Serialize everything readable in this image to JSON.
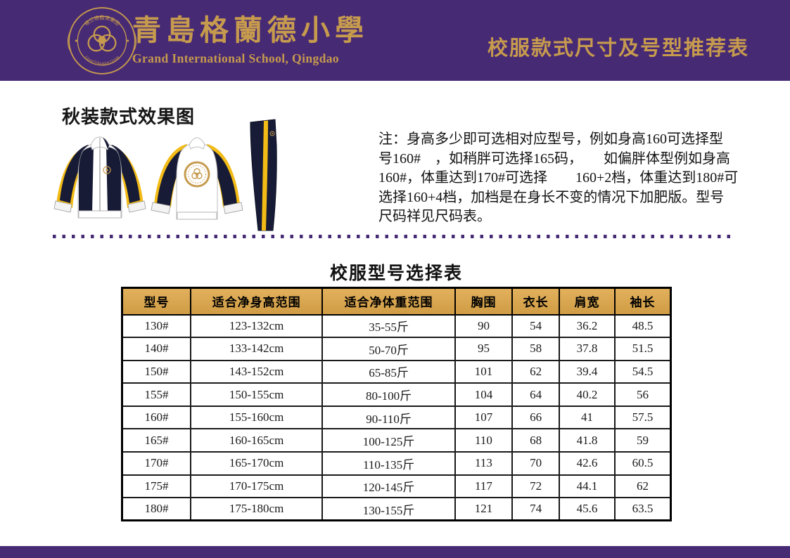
{
  "header": {
    "school_name_zh": "青島格蘭德小學",
    "school_name_en": "Grand International School, Qingdao",
    "page_title": "校服款式尺寸及号型推荐表",
    "logo": {
      "arc_top_text": "格兰德教育集团",
      "arc_bottom_text": "Grand Education Group"
    }
  },
  "autumn_section": {
    "title": "秋装款式效果图",
    "garments": [
      "jacket-front",
      "jacket-back",
      "pants"
    ],
    "note_lines": [
      "注：身高多少即可选相对应型号，例如身高160可选择型",
      "号160#　，如稍胖可选择165码，　　如偏胖体型例如身高",
      "160#，体重达到170#可选择　　160+2档，体重达到180#可",
      "选择160+4档，加档是在身长不变的情况下加肥版。型号",
      "尺码祥见尺码表。"
    ]
  },
  "size_table": {
    "title": "校服型号选择表",
    "columns": [
      "型号",
      "适合净身高范围",
      "适合净体重范围",
      "胸围",
      "衣长",
      "肩宽",
      "袖长"
    ],
    "rows": [
      [
        "130#",
        "123-132cm",
        "35-55斤",
        "90",
        "54",
        "36.2",
        "48.5"
      ],
      [
        "140#",
        "133-142cm",
        "50-70斤",
        "95",
        "58",
        "37.8",
        "51.5"
      ],
      [
        "150#",
        "143-152cm",
        "65-85斤",
        "101",
        "62",
        "39.4",
        "54.5"
      ],
      [
        "155#",
        "150-155cm",
        "80-100斤",
        "104",
        "64",
        "40.2",
        "56"
      ],
      [
        "160#",
        "155-160cm",
        "90-110斤",
        "107",
        "66",
        "41",
        "57.5"
      ],
      [
        "165#",
        "160-165cm",
        "100-125斤",
        "110",
        "68",
        "41.8",
        "59"
      ],
      [
        "170#",
        "165-170cm",
        "110-135斤",
        "113",
        "70",
        "42.6",
        "60.5"
      ],
      [
        "175#",
        "170-175cm",
        "120-145斤",
        "117",
        "72",
        "44.1",
        "62"
      ],
      [
        "180#",
        "175-180cm",
        "130-155斤",
        "121",
        "74",
        "45.6",
        "63.5"
      ]
    ]
  },
  "colors": {
    "purple": "#472a74",
    "gold": "#c69b4e",
    "navy": "#171b35",
    "stripe_yellow": "#f3bb16",
    "table_header_gold": "#d8a54e"
  }
}
